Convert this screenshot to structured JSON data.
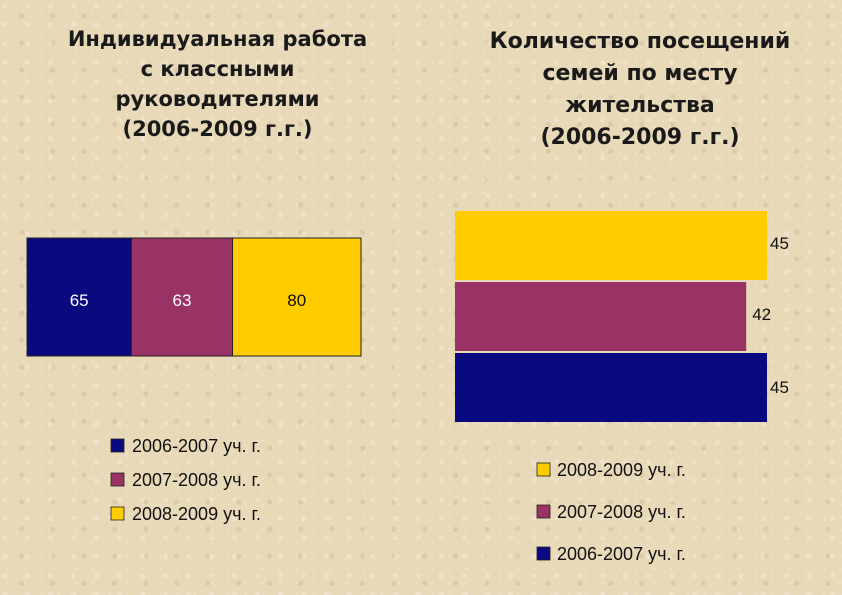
{
  "chart_data": [
    {
      "type": "bar",
      "orientation": "stacked-horizontal",
      "title_lines": [
        "Индивидуальная работа",
        "с классными",
        "руководителями",
        "(2006-2009 г.г.)"
      ],
      "series": [
        {
          "name": "2006-2007 уч. г.",
          "value": 65,
          "color": "#0a0a80"
        },
        {
          "name": "2007-2008 уч. г.",
          "value": 63,
          "color": "#993366"
        },
        {
          "name": "2008-2009 уч. г.",
          "value": 80,
          "color": "#ffcc00"
        }
      ],
      "legend_position": "bottom"
    },
    {
      "type": "bar",
      "orientation": "horizontal",
      "title_lines": [
        "Количество посещений",
        "семей по месту",
        "жительства",
        "(2006-2009 г.г.)"
      ],
      "series": [
        {
          "name": "2008-2009 уч. г.",
          "value": 45,
          "color": "#ffcc00"
        },
        {
          "name": "2007-2008 уч. г.",
          "value": 42,
          "color": "#993366"
        },
        {
          "name": "2006-2007 уч. г.",
          "value": 45,
          "color": "#0a0a80"
        }
      ],
      "xlim": [
        0,
        45
      ],
      "legend_position": "bottom"
    }
  ]
}
